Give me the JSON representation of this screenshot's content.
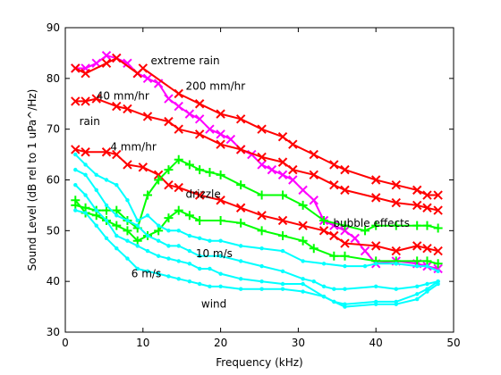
{
  "chart_data": {
    "type": "line",
    "xlabel": "Frequency (kHz)",
    "ylabel": "Sound Level (dB rel to 1 uPa^/Hz)",
    "xlim": [
      0,
      50
    ],
    "ylim": [
      30,
      90
    ],
    "xticks": [
      0,
      10,
      20,
      30,
      40,
      50
    ],
    "yticks": [
      30,
      40,
      50,
      60,
      70,
      80,
      90
    ],
    "grid": false,
    "legend": "none",
    "series": [
      {
        "color": "#ff00ff",
        "marker": "x",
        "x": [
          1.3,
          2.6,
          4.0,
          5.3,
          6.6,
          8.0,
          9.3,
          10.6,
          12.0,
          13.3,
          14.6,
          16.0,
          17.3,
          18.6,
          20.0,
          21.3,
          22.6,
          24.0,
          25.3,
          26.6,
          28.0,
          29.3,
          30.6,
          32.0,
          33.3,
          34.6,
          36.0,
          37.3,
          38.6,
          40.0,
          42.6,
          45.3,
          46.6,
          48.0
        ],
        "y": [
          82,
          82,
          83,
          84.5,
          84,
          83,
          81,
          80,
          79,
          76,
          74.5,
          73,
          72,
          70,
          69,
          68,
          66,
          65,
          63,
          62,
          61,
          60,
          58,
          56,
          52,
          51,
          50,
          48.5,
          46,
          43.5,
          44,
          43.5,
          43,
          42.5
        ]
      },
      {
        "color": "#ff0000",
        "marker": "x",
        "x": [
          1.3,
          2.6,
          5.3,
          6.6,
          9.3,
          10.0,
          14.6,
          17.3,
          20.0,
          22.6,
          25.3,
          28.0,
          29.3,
          32.0,
          34.6,
          36.0,
          40.0,
          42.6,
          45.3,
          46.6,
          48.0
        ],
        "y": [
          82,
          81,
          83,
          84,
          81,
          82,
          77,
          75,
          73,
          72,
          70,
          68.5,
          67,
          65,
          63,
          62,
          60,
          59,
          58,
          57,
          57
        ]
      },
      {
        "color": "#ff0000",
        "marker": "x",
        "x": [
          1.3,
          2.6,
          4.0,
          6.6,
          8.0,
          10.6,
          13.3,
          14.6,
          17.3,
          20.0,
          22.6,
          25.3,
          28.0,
          29.3,
          32.0,
          34.6,
          36.0,
          40.0,
          42.6,
          45.3,
          46.6,
          48.0
        ],
        "y": [
          75.5,
          75.5,
          76,
          74.5,
          74,
          72.5,
          71.5,
          70,
          69,
          67,
          66,
          64.5,
          63.5,
          62,
          61,
          59,
          58,
          56.5,
          55.5,
          55,
          54.5,
          54
        ]
      },
      {
        "color": "#ff0000",
        "marker": "x",
        "x": [
          1.3,
          2.6,
          5.3,
          6.6,
          8.0,
          10.0,
          12.0,
          13.3,
          14.6,
          17.3,
          20.0,
          22.6,
          25.3,
          28.0,
          30.6,
          33.3,
          34.6,
          36.0,
          40.0,
          42.6,
          45.3,
          46.6,
          48.0
        ],
        "y": [
          66,
          65.5,
          65.5,
          65,
          63,
          62.5,
          61,
          59,
          58.5,
          57,
          56,
          54.5,
          53,
          52,
          51,
          50,
          49,
          47.5,
          47,
          46,
          47,
          46.5,
          46
        ]
      },
      {
        "color": "#00ff00",
        "marker": "+",
        "x": [
          1.3,
          2.6,
          4.0,
          5.3,
          6.6,
          8.0,
          9.3,
          10.6,
          12.0,
          13.3,
          14.6,
          16.0,
          17.3,
          18.6,
          20.0,
          22.6,
          25.3,
          28.0,
          30.6,
          33.3,
          36.0,
          38.6,
          40.0,
          42.6,
          45.3,
          46.6,
          48.0
        ],
        "y": [
          55,
          54.5,
          54,
          54,
          54,
          52,
          50.5,
          57,
          60,
          62,
          64,
          63,
          62,
          61.5,
          61,
          59,
          57,
          57,
          55,
          52,
          51,
          50,
          51,
          51,
          51,
          51,
          50.5
        ]
      },
      {
        "color": "#00ff00",
        "marker": "+",
        "x": [
          1.3,
          2.6,
          4.0,
          5.3,
          6.6,
          8.0,
          9.3,
          10.6,
          12.0,
          13.3,
          14.6,
          16.0,
          17.3,
          20.0,
          22.6,
          25.3,
          28.0,
          30.6,
          32.0,
          34.6,
          36.0,
          40.0,
          42.6,
          45.3,
          46.6,
          48.0
        ],
        "y": [
          56,
          53.5,
          53,
          52,
          51,
          50,
          48,
          49,
          50,
          52.5,
          54,
          53,
          52,
          52,
          51.5,
          50,
          49,
          48,
          46.5,
          45,
          45,
          44,
          44,
          44,
          44,
          43.5
        ]
      },
      {
        "color": "#00ffff",
        "marker": ".",
        "x": [
          1.3,
          2.6,
          4.0,
          5.3,
          6.6,
          8.0,
          9.3,
          10.6,
          12.0,
          13.3,
          14.6,
          16.0,
          17.3,
          18.6,
          20.0,
          22.6,
          25.3,
          28.0,
          30.6,
          33.3,
          36.0,
          38.6,
          40.0,
          42.6,
          45.3,
          46.6,
          48.0
        ],
        "y": [
          65,
          63,
          61,
          60,
          59,
          56,
          52,
          53,
          51,
          50,
          50,
          49,
          48.5,
          48,
          48,
          47,
          46.5,
          46,
          44,
          43.5,
          43,
          43,
          43.5,
          43.5,
          43,
          43,
          42
        ]
      },
      {
        "color": "#00ffff",
        "marker": ".",
        "x": [
          1.3,
          2.6,
          4.0,
          5.3,
          6.6,
          8.0,
          9.3,
          10.6,
          12.0,
          13.3,
          14.6,
          16.0,
          17.3,
          20.0,
          22.6,
          25.3,
          28.0,
          30.6,
          32.0,
          33.3,
          34.6,
          36.0,
          40.0,
          42.6,
          45.3,
          46.6,
          48.0
        ],
        "y": [
          62,
          61,
          58,
          55,
          53,
          52,
          51,
          49,
          48,
          47,
          47,
          46,
          45,
          45,
          44,
          43,
          42,
          40.5,
          40,
          39,
          38.5,
          38.5,
          39,
          38.5,
          39,
          39.5,
          40
        ]
      },
      {
        "color": "#00ffff",
        "marker": ".",
        "x": [
          1.3,
          2.6,
          4.0,
          5.3,
          6.6,
          8.0,
          9.3,
          10.6,
          12.0,
          13.3,
          14.6,
          16.0,
          17.3,
          18.6,
          20.0,
          22.6,
          25.3,
          28.0,
          30.6,
          33.3,
          34.6,
          36.0,
          40.0,
          42.6,
          45.3,
          46.6,
          48.0
        ],
        "y": [
          59,
          57,
          54,
          52,
          49,
          48,
          47,
          46,
          45,
          44.5,
          44,
          43.5,
          42.5,
          42.5,
          41.5,
          40.5,
          40,
          39.5,
          39.5,
          37,
          36,
          35.5,
          36,
          36,
          37.5,
          38.5,
          40
        ]
      },
      {
        "color": "#00ffff",
        "marker": ".",
        "x": [
          1.3,
          2.6,
          4.0,
          5.3,
          6.6,
          8.0,
          9.3,
          10.6,
          12.0,
          13.3,
          14.6,
          16.0,
          17.3,
          18.6,
          20.0,
          22.6,
          25.3,
          28.0,
          30.6,
          33.3,
          34.6,
          36.0,
          40.0,
          42.6,
          45.3,
          46.6,
          48.0
        ],
        "y": [
          54,
          53.5,
          51,
          48.5,
          46.5,
          44.5,
          42.5,
          42,
          41.5,
          41,
          40.5,
          40,
          39.5,
          39,
          39,
          38.5,
          38.5,
          38.5,
          38,
          37,
          36,
          35,
          35.5,
          35.5,
          36.5,
          38,
          39.5
        ]
      }
    ],
    "annotations": [
      {
        "text": "extreme rain",
        "x": 11,
        "y": 83.5
      },
      {
        "text": "200 mm/hr",
        "x": 15.5,
        "y": 78.5
      },
      {
        "text": "40 mm/hr",
        "x": 4,
        "y": 76.5
      },
      {
        "text": "rain",
        "x": 1.8,
        "y": 71.5
      },
      {
        "text": "4 mm/hr",
        "x": 5.8,
        "y": 66.5
      },
      {
        "text": "drizzle",
        "x": 15.5,
        "y": 57.2
      },
      {
        "text": "bubble effects",
        "x": 34.5,
        "y": 51.5
      },
      {
        "text": "10 m/s",
        "x": 16.8,
        "y": 45.5
      },
      {
        "text": "6 m/s",
        "x": 8.5,
        "y": 41.5
      },
      {
        "text": "wind",
        "x": 17.5,
        "y": 35.5
      }
    ]
  }
}
